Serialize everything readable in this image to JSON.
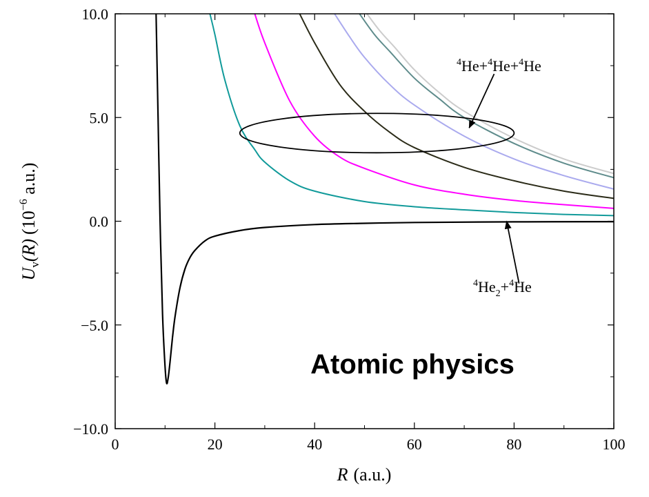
{
  "chart_data": {
    "type": "line",
    "title": "",
    "xlabel": {
      "var": "R",
      "unit": "(a.u.)"
    },
    "ylabel": {
      "u": "U",
      "sub": "v",
      "arg": "(R)",
      "unit_pre": "(10",
      "exp": "−6",
      "unit_post": " a.u.)"
    },
    "xlim": [
      0,
      100
    ],
    "ylim": [
      -10,
      10
    ],
    "xticks": [
      0,
      20,
      40,
      60,
      80,
      100
    ],
    "xtick_labels": [
      "0",
      "20",
      "40",
      "60",
      "80",
      "100"
    ],
    "yticks": [
      -10,
      -5,
      0,
      5,
      10
    ],
    "ytick_labels": [
      "−10.0",
      "−5.0",
      "0.0",
      "5.0",
      "10.0"
    ],
    "grid": false,
    "series": [
      {
        "color": "#000000",
        "x": [
          8.2,
          8.6,
          9.0,
          9.5,
          10.0,
          10.3,
          10.6,
          11.0,
          11.5,
          12.0,
          13.0,
          14.0,
          15.0,
          16.0,
          18.0,
          20.0,
          25.0,
          30.0,
          40.0,
          50.0,
          60.0,
          80.0,
          100.0
        ],
        "y": [
          10.0,
          5.0,
          0.0,
          -4.5,
          -7.0,
          -7.8,
          -7.6,
          -6.8,
          -5.6,
          -4.6,
          -3.2,
          -2.3,
          -1.75,
          -1.4,
          -0.95,
          -0.72,
          -0.45,
          -0.3,
          -0.16,
          -0.1,
          -0.06,
          -0.03,
          -0.02
        ]
      },
      {
        "color": "#119a9a",
        "x": [
          19.0,
          20.0,
          22.0,
          25.0,
          28.0,
          30.0,
          35.0,
          40.0,
          50.0,
          60.0,
          70.0,
          80.0,
          90.0,
          100.0
        ],
        "y": [
          10.0,
          9.0,
          6.8,
          4.6,
          3.45,
          2.85,
          1.95,
          1.45,
          0.95,
          0.7,
          0.55,
          0.42,
          0.33,
          0.27
        ]
      },
      {
        "color": "#ff00ff",
        "x": [
          28.0,
          30.0,
          35.0,
          40.0,
          45.0,
          50.0,
          60.0,
          70.0,
          80.0,
          90.0,
          100.0
        ],
        "y": [
          10.0,
          8.6,
          5.8,
          4.1,
          3.1,
          2.55,
          1.75,
          1.3,
          1.0,
          0.8,
          0.62
        ]
      },
      {
        "color": "#2b2b18",
        "x": [
          37.0,
          40.0,
          45.0,
          50.0,
          55.0,
          60.0,
          70.0,
          80.0,
          90.0,
          100.0
        ],
        "y": [
          10.0,
          8.6,
          6.6,
          5.3,
          4.3,
          3.55,
          2.6,
          1.95,
          1.45,
          1.1
        ]
      },
      {
        "color": "#aaaaee",
        "x": [
          44.0,
          47.0,
          50.0,
          55.0,
          60.0,
          70.0,
          80.0,
          90.0,
          100.0
        ],
        "y": [
          10.0,
          8.9,
          7.9,
          6.6,
          5.6,
          4.1,
          3.0,
          2.2,
          1.55
        ]
      },
      {
        "color": "#5f8c8c",
        "x": [
          49.0,
          52.0,
          55.0,
          60.0,
          65.0,
          70.0,
          80.0,
          90.0,
          100.0
        ],
        "y": [
          10.0,
          9.0,
          8.2,
          6.9,
          5.9,
          5.0,
          3.75,
          2.8,
          2.1
        ]
      },
      {
        "color": "#cccccc",
        "x": [
          50.5,
          53.0,
          56.0,
          60.0,
          65.0,
          70.0,
          80.0,
          90.0,
          100.0
        ],
        "y": [
          10.0,
          9.2,
          8.4,
          7.3,
          6.2,
          5.3,
          4.0,
          3.0,
          2.3
        ]
      }
    ],
    "annotations": [
      {
        "id": "three-body",
        "parts": [
          {
            "t": "4",
            "sup": true
          },
          {
            "t": "He+"
          },
          {
            "t": "4",
            "sup": true
          },
          {
            "t": "He+"
          },
          {
            "t": "4",
            "sup": true
          },
          {
            "t": "He"
          }
        ],
        "ellipse": {
          "cx": 52.5,
          "cy": 4.25,
          "rx": 27.5,
          "ry": 0.95
        },
        "arrow_from": [
          76,
          7.1
        ],
        "arrow_to": [
          71,
          4.5
        ]
      },
      {
        "id": "dimer-atom",
        "parts": [
          {
            "t": "4",
            "sup": true
          },
          {
            "t": "He"
          },
          {
            "t": "2",
            "sub": true
          },
          {
            "t": "+"
          },
          {
            "t": "4",
            "sup": true
          },
          {
            "t": "He"
          }
        ],
        "arrow_from": [
          81,
          -3.0
        ],
        "arrow_to": [
          78.5,
          0.0
        ]
      }
    ]
  },
  "overlay_label": "Atomic physics"
}
